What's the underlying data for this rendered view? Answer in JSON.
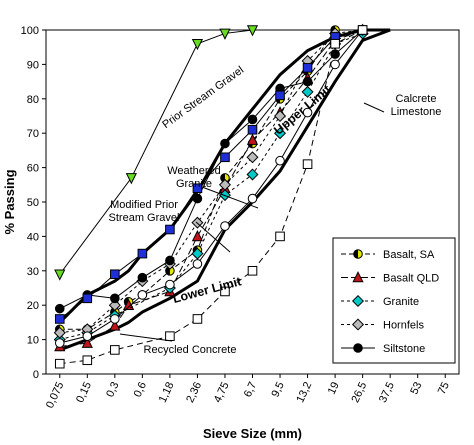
{
  "chart_data": {
    "type": "line",
    "title": "",
    "xlabel": "Sieve Size (mm)",
    "ylabel": "% Passing",
    "x_scale": "categorical",
    "categories": [
      "0,075",
      "0,15",
      "0,3",
      "0,6",
      "1,18",
      "2,36",
      "4,75",
      "6,7",
      "9,5",
      "13,2",
      "19",
      "26,5",
      "37,5",
      "53",
      "75"
    ],
    "ylim": [
      0,
      100
    ],
    "y_ticks": [
      0,
      10,
      20,
      30,
      40,
      50,
      60,
      70,
      80,
      90,
      100
    ],
    "grid": false,
    "legend_position": "bottom-right",
    "series": [
      {
        "name": "Basalt, SA",
        "style": "marker",
        "marker": "circle-half",
        "color": "#e6e600",
        "points": [
          [
            0,
            13
          ],
          [
            1,
            13
          ],
          [
            2,
            18
          ],
          [
            2.5,
            21
          ],
          [
            3,
            23
          ],
          [
            4,
            30
          ],
          [
            5,
            36
          ],
          [
            6,
            57
          ],
          [
            7,
            67
          ],
          [
            8,
            80
          ],
          [
            9,
            88
          ],
          [
            10,
            100
          ],
          [
            11,
            100
          ]
        ]
      },
      {
        "name": "Basalt QLD",
        "style": "marker",
        "marker": "triangle",
        "color": "#c0141b",
        "points": [
          [
            0,
            8
          ],
          [
            1,
            9
          ],
          [
            2,
            14
          ],
          [
            2.5,
            20
          ],
          [
            4,
            24
          ],
          [
            5,
            40
          ],
          [
            6,
            54
          ],
          [
            7,
            68
          ],
          [
            8,
            76
          ],
          [
            9,
            86
          ],
          [
            10,
            97
          ],
          [
            11,
            100
          ]
        ]
      },
      {
        "name": "Granite",
        "style": "marker",
        "marker": "diamond",
        "color": "#00c8c8",
        "points": [
          [
            0,
            10
          ],
          [
            1,
            12
          ],
          [
            2,
            17
          ],
          [
            4,
            25
          ],
          [
            5,
            35
          ],
          [
            6,
            52
          ],
          [
            7,
            58
          ],
          [
            8,
            70
          ],
          [
            9,
            82
          ],
          [
            10,
            96
          ],
          [
            11,
            99
          ]
        ]
      },
      {
        "name": "Hornfels",
        "style": "marker",
        "marker": "diamond",
        "color": "#bbbbbb",
        "points": [
          [
            0,
            12
          ],
          [
            1,
            13
          ],
          [
            2,
            20
          ],
          [
            3,
            27
          ],
          [
            4,
            32
          ],
          [
            5,
            44
          ],
          [
            6,
            55
          ],
          [
            7,
            63
          ],
          [
            8,
            75
          ],
          [
            9,
            91
          ],
          [
            10,
            99
          ],
          [
            11,
            100
          ]
        ]
      },
      {
        "name": "Siltstone",
        "style": "marker",
        "marker": "circle",
        "color": "#000000",
        "points": [
          [
            0,
            19
          ],
          [
            1,
            23
          ],
          [
            2,
            22
          ],
          [
            3,
            28
          ],
          [
            4,
            33
          ],
          [
            5,
            51
          ],
          [
            6,
            67
          ],
          [
            7,
            74
          ],
          [
            8,
            83
          ],
          [
            9,
            85
          ],
          [
            10,
            93
          ],
          [
            11,
            100
          ]
        ]
      },
      {
        "name": "",
        "style": "marker",
        "marker": "square",
        "color": "#1f2fd6",
        "points": [
          [
            0,
            16
          ],
          [
            1,
            22
          ],
          [
            2,
            29
          ],
          [
            3,
            35
          ],
          [
            4,
            42
          ],
          [
            5,
            54
          ],
          [
            6,
            63
          ],
          [
            7,
            71
          ],
          [
            8,
            81
          ],
          [
            9,
            89
          ],
          [
            10,
            98
          ],
          [
            11,
            100
          ]
        ]
      },
      {
        "name": "",
        "style": "marker",
        "marker": "circle-open",
        "color": "#ffffff",
        "points": [
          [
            0,
            9
          ],
          [
            1,
            11
          ],
          [
            2,
            16
          ],
          [
            3,
            23
          ],
          [
            4,
            26
          ],
          [
            5,
            32
          ],
          [
            6,
            43
          ],
          [
            7,
            51
          ],
          [
            8,
            62
          ],
          [
            9,
            76
          ],
          [
            10,
            90
          ],
          [
            11,
            100
          ]
        ]
      },
      {
        "name": "",
        "style": "marker",
        "marker": "triangle-down",
        "color": "#66dd22",
        "points": [
          [
            0,
            29
          ],
          [
            2.6,
            57
          ],
          [
            5,
            96
          ],
          [
            6,
            99
          ],
          [
            7,
            100
          ]
        ]
      },
      {
        "name": "",
        "style": "marker",
        "marker": "square-open",
        "color": "#ffffff",
        "points": [
          [
            0,
            3
          ],
          [
            1,
            4
          ],
          [
            2,
            7
          ],
          [
            4,
            11
          ],
          [
            5,
            16
          ],
          [
            6,
            24
          ],
          [
            7,
            30
          ],
          [
            8,
            40
          ],
          [
            9,
            61
          ],
          [
            10,
            96
          ],
          [
            11,
            100
          ]
        ]
      },
      {
        "name": "Upper Limit",
        "style": "limit",
        "points": [
          [
            0,
            15
          ],
          [
            1,
            23
          ],
          [
            2,
            27
          ],
          [
            2.5,
            30
          ],
          [
            3,
            35
          ],
          [
            4,
            42
          ],
          [
            5,
            53
          ],
          [
            6,
            67
          ],
          [
            7,
            77
          ],
          [
            8,
            87
          ],
          [
            9,
            94
          ],
          [
            10,
            98
          ],
          [
            11,
            100
          ],
          [
            12,
            100
          ]
        ]
      },
      {
        "name": "Lower Limit",
        "style": "limit",
        "points": [
          [
            0,
            7
          ],
          [
            1,
            10
          ],
          [
            2,
            13
          ],
          [
            2.5,
            15
          ],
          [
            3,
            18
          ],
          [
            4,
            22
          ],
          [
            5,
            27
          ],
          [
            6,
            42
          ],
          [
            7,
            50
          ],
          [
            8,
            59
          ],
          [
            9,
            72
          ],
          [
            10,
            85
          ],
          [
            11,
            97
          ],
          [
            12,
            100
          ]
        ]
      }
    ],
    "annotations": [
      "Prior Stream Gravel",
      "Weathered Granite",
      "Modified Prior Stream Gravel",
      "Calcrete Limestone",
      "Recycled Concrete",
      "Upper Limit",
      "Lower Limit"
    ]
  }
}
